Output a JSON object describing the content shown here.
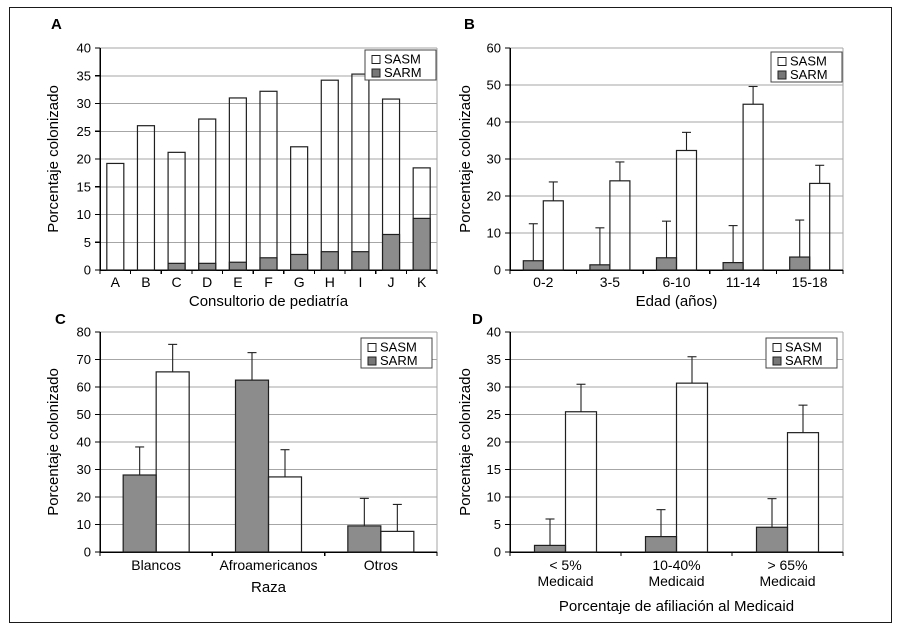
{
  "figure": {
    "background": "#ffffff",
    "border_color": "#1a1a1a",
    "colors": {
      "sasm_fill": "none",
      "sarm_fill": "#8c8c8c",
      "bar_stroke": "#1f1f1f",
      "gridline": "#a6a6a6",
      "axis": "#000000",
      "text": "#000000",
      "legend_box_stroke": "#444444",
      "legend_sarm_swatch": "#777777",
      "error_bar": "#1f1f1f"
    },
    "legend": {
      "position": "top-right",
      "items": [
        {
          "label": "SASM",
          "fill": "#ffffff"
        },
        {
          "label": "SARM",
          "fill": "#777777"
        }
      ]
    }
  },
  "chart_data": [
    {
      "id": "A",
      "panel_label": "A",
      "type": "bar",
      "subtype": "stacked",
      "title": "",
      "xlabel": "Consultorio de pediatría",
      "ylabel": "Porcentaje colonizado",
      "ylim": [
        0,
        40
      ],
      "ytick_step": 5,
      "yticks": [
        0,
        5,
        10,
        15,
        20,
        25,
        30,
        35,
        40
      ],
      "grid": true,
      "legend_labels": [
        "SASM",
        "SARM"
      ],
      "categories": [
        "A",
        "B",
        "C",
        "D",
        "E",
        "F",
        "G",
        "H",
        "I",
        "J",
        "K"
      ],
      "series": [
        {
          "name": "SARM",
          "values": [
            0,
            0,
            1.2,
            1.2,
            1.4,
            2.2,
            2.8,
            3.3,
            3.3,
            6.4,
            9.3
          ]
        },
        {
          "name": "SASM",
          "values": [
            19.2,
            26,
            20,
            26,
            29.6,
            30,
            19.4,
            30.9,
            32,
            24.4,
            9.1
          ]
        }
      ],
      "stack_totals": [
        19.2,
        26,
        21.2,
        27.2,
        31,
        32.2,
        22.2,
        34.2,
        35.3,
        30.8,
        18.4
      ]
    },
    {
      "id": "B",
      "panel_label": "B",
      "type": "bar",
      "subtype": "grouped",
      "title": "",
      "xlabel": "Edad (años)",
      "ylabel": "Porcentaje colonizado",
      "ylim": [
        0,
        60
      ],
      "ytick_step": 10,
      "yticks": [
        0,
        10,
        20,
        30,
        40,
        50,
        60
      ],
      "grid": true,
      "legend_labels": [
        "SASM",
        "SARM"
      ],
      "categories": [
        "0-2",
        "3-5",
        "6-10",
        "11-14",
        "15-18"
      ],
      "series": [
        {
          "name": "SARM",
          "values": [
            2.5,
            1.4,
            3.3,
            2,
            3.5
          ],
          "error_up": [
            10,
            10,
            9.9,
            10,
            10
          ]
        },
        {
          "name": "SASM",
          "values": [
            18.7,
            24.1,
            32.3,
            44.8,
            23.4
          ],
          "error_up": [
            5.1,
            5.1,
            4.9,
            4.8,
            4.9
          ]
        }
      ]
    },
    {
      "id": "C",
      "panel_label": "C",
      "type": "bar",
      "subtype": "grouped",
      "title": "",
      "xlabel": "Raza",
      "ylabel": "Porcentaje colonizado",
      "ylim": [
        0,
        80
      ],
      "ytick_step": 10,
      "yticks": [
        0,
        10,
        20,
        30,
        40,
        50,
        60,
        70,
        80
      ],
      "grid": true,
      "legend_labels": [
        "SASM",
        "SARM"
      ],
      "categories": [
        "Blancos",
        "Afroamericanos",
        "Otros"
      ],
      "series": [
        {
          "name": "SARM",
          "values": [
            28,
            62.5,
            9.5
          ],
          "error_up": [
            10.2,
            10,
            10
          ]
        },
        {
          "name": "SASM",
          "values": [
            65.5,
            27.3,
            7.5
          ],
          "error_up": [
            10,
            9.9,
            9.8
          ]
        }
      ]
    },
    {
      "id": "D",
      "panel_label": "D",
      "type": "bar",
      "subtype": "grouped",
      "title": "",
      "xlabel": "Porcentaje de afiliación al Medicaid",
      "ylabel": "Porcentaje colonizado",
      "ylim": [
        0,
        40
      ],
      "ytick_step": 5,
      "yticks": [
        0,
        5,
        10,
        15,
        20,
        25,
        30,
        35,
        40
      ],
      "grid": true,
      "legend_labels": [
        "SASM",
        "SARM"
      ],
      "categories": [
        "< 5%\nMedicaid",
        "10-40%\nMedicaid",
        "> 65%\nMedicaid"
      ],
      "series": [
        {
          "name": "SARM",
          "values": [
            1.2,
            2.8,
            4.5
          ],
          "error_up": [
            4.8,
            4.9,
            5.2
          ]
        },
        {
          "name": "SASM",
          "values": [
            25.5,
            30.7,
            21.7
          ],
          "error_up": [
            5,
            4.8,
            5
          ]
        }
      ]
    }
  ]
}
